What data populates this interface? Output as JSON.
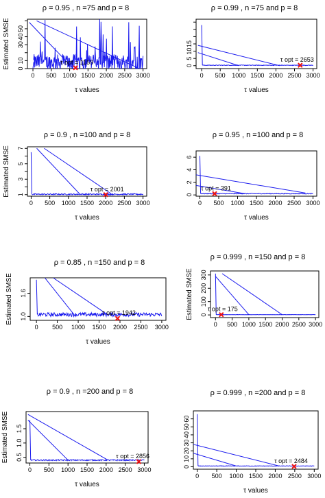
{
  "chart_data": [
    {
      "type": "line",
      "title": "ρ = 0.95 , n =75 and p = 8",
      "xlabel": "τ values",
      "ylabel": "Estimated SMSE",
      "xlim": [
        -150,
        3100
      ],
      "ylim": [
        0,
        62
      ],
      "xticks": [
        0,
        500,
        1000,
        1500,
        2000,
        2500,
        3000
      ],
      "yticks": [
        0,
        10,
        20,
        30,
        40,
        50,
        60
      ],
      "ytick_labels": [
        "0",
        "10",
        "",
        "30",
        "40",
        "50",
        ""
      ],
      "baseline": 8,
      "noise": 10,
      "spikes": true,
      "drop_start": 0,
      "diagonals": [
        [
          -100,
          58,
          1100,
          0
        ],
        [
          100,
          60,
          2900,
          0
        ]
      ],
      "tau_opt": {
        "x": 1159,
        "y": 1,
        "label": "τ opt = 1159"
      }
    },
    {
      "type": "line",
      "title": "ρ = 0.99 , n =75 and p = 8",
      "xlabel": "τ values",
      "ylabel": "",
      "xlim": [
        -150,
        3100
      ],
      "ylim": [
        -2,
        32
      ],
      "xticks": [
        0,
        500,
        1000,
        1500,
        2000,
        2500,
        3000
      ],
      "yticks": [
        0,
        5,
        10,
        15,
        20,
        25,
        30
      ],
      "ytick_labels": [
        "0",
        "5",
        "10",
        "15",
        "",
        "",
        ""
      ],
      "baseline": 0.3,
      "noise": 0.2,
      "spikes": false,
      "drop_start": 28,
      "diagonals": [
        [
          -100,
          14,
          2100,
          0
        ],
        [
          -100,
          9,
          1000,
          0
        ]
      ],
      "tau_opt": {
        "x": 2653,
        "y": 0.3,
        "label": "τ opt = 2653"
      }
    },
    {
      "type": "line",
      "title": "ρ = 0.9 , n =100 and p = 8",
      "xlabel": "τ values",
      "ylabel": "Estimated SMSE",
      "xlim": [
        -100,
        3100
      ],
      "ylim": [
        0.8,
        7.2
      ],
      "xticks": [
        0,
        500,
        1000,
        1500,
        2000,
        2500,
        3000
      ],
      "yticks": [
        1,
        2,
        3,
        4,
        5,
        6,
        7
      ],
      "ytick_labels": [
        "1",
        "",
        "3",
        "",
        "5",
        "",
        "7"
      ],
      "baseline": 1.05,
      "noise": 0.08,
      "spikes": false,
      "drop_start": 6.5,
      "diagonals": [
        [
          150,
          7,
          1300,
          1.1
        ],
        [
          350,
          7,
          2150,
          1.1
        ]
      ],
      "tau_opt": {
        "x": 2001,
        "y": 1.0,
        "label": "τ opt = 2001"
      }
    },
    {
      "type": "line",
      "title": "ρ = 0.95 , n =100 and p = 8",
      "xlabel": "τ values",
      "ylabel": "",
      "xlim": [
        -100,
        3100
      ],
      "ylim": [
        -0.2,
        7
      ],
      "xticks": [
        0,
        500,
        1000,
        1500,
        2000,
        2500,
        3000
      ],
      "yticks": [
        0,
        2,
        4,
        6
      ],
      "ytick_labels": [
        "0",
        "2",
        "4",
        "6"
      ],
      "baseline": 0.2,
      "noise": 0.05,
      "spikes": false,
      "drop_start": 6.2,
      "diagonals": [
        [
          -100,
          3.2,
          2800,
          0.3
        ],
        [
          -100,
          1.5,
          1200,
          0.2
        ]
      ],
      "tau_opt": {
        "x": 391,
        "y": 0.2,
        "label": "τ opt = 391"
      }
    },
    {
      "type": "line",
      "title": "ρ = 0.85 , n =150 and p = 8",
      "xlabel": "τ values",
      "ylabel": "Estimated SMSE",
      "xlim": [
        -150,
        3100
      ],
      "ylim": [
        0.9,
        2.0
      ],
      "xticks": [
        0,
        500,
        1000,
        1500,
        2000,
        2500,
        3000
      ],
      "yticks": [
        1.0,
        1.6
      ],
      "ytick_labels": [
        "1.0",
        "1.6"
      ],
      "baseline": 1.05,
      "noise": 0.05,
      "spikes": false,
      "drop_start": 1.95,
      "diagonals": [
        [
          400,
          2.0,
          1700,
          1.05
        ],
        [
          200,
          2.0,
          900,
          1.05
        ]
      ],
      "tau_opt": {
        "x": 1942,
        "y": 0.95,
        "label": "τ opt = 1942"
      }
    },
    {
      "type": "line",
      "title": "ρ = 0.999 , n =150 and p = 8",
      "xlabel": "",
      "ylabel": "Estimated SMSE",
      "xlim": [
        -150,
        3100
      ],
      "ylim": [
        -20,
        330
      ],
      "xticks": [
        0,
        500,
        1000,
        1500,
        2000,
        2500,
        3000
      ],
      "yticks": [
        0,
        100,
        200,
        300
      ],
      "ytick_labels": [
        "0",
        "100",
        "200",
        "300"
      ],
      "baseline": 2,
      "noise": 1,
      "spikes": false,
      "drop_start": 310,
      "diagonals": [
        [
          200,
          310,
          2000,
          2
        ],
        [
          0,
          290,
          1000,
          2
        ]
      ],
      "tau_opt": {
        "x": 175,
        "y": 2,
        "label": "τ opt = 175"
      }
    },
    {
      "type": "line",
      "title": "ρ = 0.9 , n =200 and p = 8",
      "xlabel": "τ values",
      "ylabel": "Estimated SMSE",
      "xlim": [
        -100,
        3100
      ],
      "ylim": [
        0.3,
        2.1
      ],
      "xticks": [
        0,
        500,
        1000,
        1500,
        2000,
        2500,
        3000
      ],
      "yticks": [
        0.5,
        1.0,
        1.5
      ],
      "ytick_labels": [
        "0.5",
        "1.0",
        "1.5"
      ],
      "baseline": 0.4,
      "noise": 0.02,
      "spikes": false,
      "drop_start": 1.8,
      "diagonals": [
        [
          -50,
          2.0,
          2050,
          0.4
        ],
        [
          -50,
          1.8,
          1000,
          0.4
        ]
      ],
      "tau_opt": {
        "x": 2856,
        "y": 0.35,
        "label": "τ opt = 2856"
      }
    },
    {
      "type": "line",
      "title": "ρ = 0.999 , n =200 and p = 8",
      "xlabel": "τ values",
      "ylabel": "",
      "xlim": [
        -100,
        3100
      ],
      "ylim": [
        -3,
        70
      ],
      "xticks": [
        0,
        500,
        1000,
        1500,
        2000,
        2500,
        3000
      ],
      "yticks": [
        0,
        10,
        20,
        30,
        40,
        50,
        60
      ],
      "ytick_labels": [
        "0",
        "10",
        "20",
        "30",
        "40",
        "50",
        "60"
      ],
      "baseline": 1,
      "noise": 0.3,
      "spikes": false,
      "drop_start": 66,
      "diagonals": [
        [
          -100,
          28,
          2100,
          1
        ],
        [
          -100,
          17,
          1000,
          1
        ]
      ],
      "tau_opt": {
        "x": 2484,
        "y": 0.5,
        "label": "τ opt = 2484"
      }
    }
  ]
}
